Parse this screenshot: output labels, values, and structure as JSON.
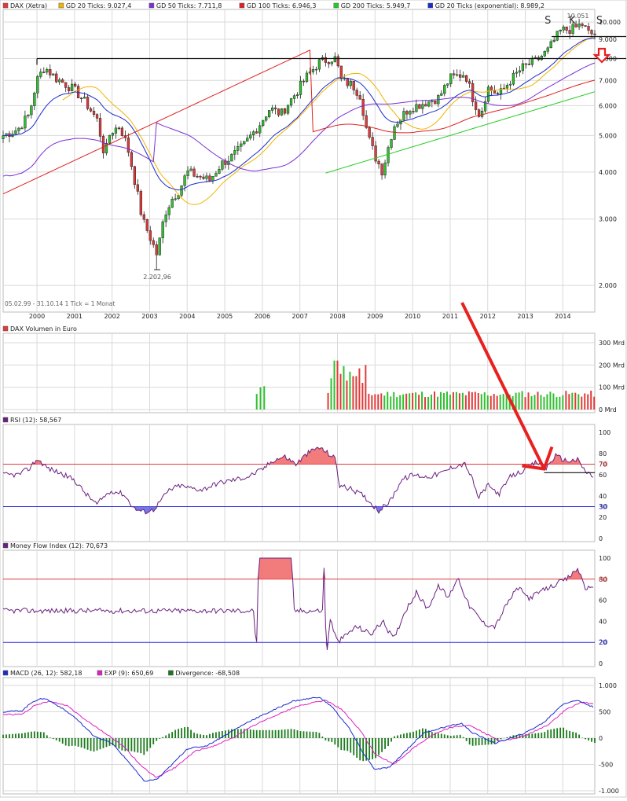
{
  "colors": {
    "up": "#2fbf2f",
    "down": "#e03a3a",
    "gd20": "#f0b400",
    "gd50": "#7a2ed6",
    "gd100": "#e02020",
    "gd200": "#22cc22",
    "ema20": "#1c2ccc",
    "rsi": "#6a2080",
    "mfi": "#6a2080",
    "macd": "#1c2ccc",
    "signal": "#e020c0",
    "divergence": "#1a7a1a",
    "upperband": "#e03a3a",
    "lowerband": "#2a2adc",
    "grid": "#d9d9d9",
    "annotation": "#e82020"
  },
  "panels": {
    "price": {
      "legend": [
        {
          "label": "DAX (Xetra)",
          "color": "#e03a3a"
        },
        {
          "label": "GD 20 Ticks: 9.027,4",
          "color": "#f0b400"
        },
        {
          "label": "GD 50 Ticks: 7.711,8",
          "color": "#7a2ed6"
        },
        {
          "label": "GD 100 Ticks: 6.946,3",
          "color": "#e02020"
        },
        {
          "label": "GD 200 Ticks: 5.949,7",
          "color": "#22cc22"
        },
        {
          "label": "GD 20 Ticks (exponential): 8.989,2",
          "color": "#1c2ccc"
        }
      ],
      "footer": "05.02.99 - 31.10.14    1 Tick = 1 Monat",
      "low_label": "2.202,96",
      "high_label": "10.051",
      "pattern_labels": [
        "S",
        "K",
        "S"
      ]
    },
    "volume": {
      "legend": [
        {
          "label": "DAX Volumen in Euro",
          "color": "#e03a3a"
        }
      ]
    },
    "rsi": {
      "legend": [
        {
          "label": "RSI (12): 58,567",
          "color": "#6a2080"
        }
      ]
    },
    "mfi": {
      "legend": [
        {
          "label": "Money Flow Index (12): 70,673",
          "color": "#6a2080"
        }
      ]
    },
    "macd": {
      "legend": [
        {
          "label": "MACD (26, 12): 582,18",
          "color": "#1c2ccc"
        },
        {
          "label": "EXP (9): 650,69",
          "color": "#e020c0"
        },
        {
          "label": "Divergence: -68,508",
          "color": "#1a7a1a"
        }
      ]
    }
  },
  "chart_data": [
    {
      "type": "candlestick",
      "title": "DAX (Xetra)",
      "scale": "log",
      "x_ticks": [
        "2000",
        "2001",
        "2002",
        "2003",
        "2004",
        "2005",
        "2006",
        "2007",
        "2008",
        "2009",
        "2010",
        "2011",
        "2012",
        "2013",
        "2014"
      ],
      "y_ticks": [
        "2.000",
        "3.000",
        "4.000",
        "5.000",
        "6.000",
        "7.000",
        "8.000",
        "9.000",
        "10.000"
      ],
      "y_tick_values": [
        2000,
        3000,
        4000,
        5000,
        6000,
        7000,
        8000,
        9000,
        10000
      ],
      "ylim": [
        1700,
        10800
      ],
      "time_range": [
        1999.1,
        2014.85
      ],
      "close_path": [
        [
          1999.1,
          5000
        ],
        [
          1999.5,
          5200
        ],
        [
          1999.8,
          5700
        ],
        [
          2000.0,
          7000
        ],
        [
          2000.2,
          7600
        ],
        [
          2000.5,
          7100
        ],
        [
          2000.8,
          6800
        ],
        [
          2001.0,
          6600
        ],
        [
          2001.3,
          6100
        ],
        [
          2001.6,
          5500
        ],
        [
          2001.8,
          4400
        ],
        [
          2001.95,
          5100
        ],
        [
          2002.2,
          5300
        ],
        [
          2002.4,
          4700
        ],
        [
          2002.6,
          3800
        ],
        [
          2002.8,
          3000
        ],
        [
          2003.0,
          2700
        ],
        [
          2003.2,
          2400
        ],
        [
          2003.4,
          3100
        ],
        [
          2003.6,
          3400
        ],
        [
          2003.8,
          3600
        ],
        [
          2004.0,
          4000
        ],
        [
          2004.3,
          3900
        ],
        [
          2004.6,
          3800
        ],
        [
          2004.9,
          4200
        ],
        [
          2005.2,
          4400
        ],
        [
          2005.5,
          4700
        ],
        [
          2005.9,
          5300
        ],
        [
          2006.2,
          5900
        ],
        [
          2006.5,
          5700
        ],
        [
          2006.9,
          6500
        ],
        [
          2007.2,
          7200
        ],
        [
          2007.5,
          7800
        ],
        [
          2007.8,
          8000
        ],
        [
          2007.95,
          8000
        ],
        [
          2008.1,
          7000
        ],
        [
          2008.4,
          6800
        ],
        [
          2008.6,
          6400
        ],
        [
          2008.8,
          5000
        ],
        [
          2009.0,
          4400
        ],
        [
          2009.2,
          4000
        ],
        [
          2009.5,
          5300
        ],
        [
          2009.9,
          5900
        ],
        [
          2010.3,
          6100
        ],
        [
          2010.7,
          6300
        ],
        [
          2011.0,
          7100
        ],
        [
          2011.4,
          7300
        ],
        [
          2011.6,
          6300
        ],
        [
          2011.8,
          5600
        ],
        [
          2012.0,
          6700
        ],
        [
          2012.3,
          6400
        ],
        [
          2012.6,
          7000
        ],
        [
          2012.95,
          7600
        ],
        [
          2013.3,
          7900
        ],
        [
          2013.6,
          8400
        ],
        [
          2013.95,
          9500
        ],
        [
          2014.3,
          9600
        ],
        [
          2014.5,
          9900
        ],
        [
          2014.7,
          9300
        ],
        [
          2014.83,
          9300
        ]
      ],
      "lows": {
        "2003.2": 2202.96
      },
      "series": [
        {
          "name": "GD 20 Ticks",
          "value_last": 9027.4
        },
        {
          "name": "GD 50 Ticks",
          "value_last": 7711.8
        },
        {
          "name": "GD 100 Ticks",
          "value_last": 6946.3
        },
        {
          "name": "GD 200 Ticks",
          "value_last": 5949.7
        },
        {
          "name": "GD 20 Ticks (exponential)",
          "value_last": 8989.2
        }
      ],
      "resistance": 8000,
      "neckline": 9150,
      "annotation": "red down arrow at right edge"
    },
    {
      "type": "bar",
      "title": "DAX Volumen in Euro",
      "y_ticks": [
        "0 Mrd",
        "100 Mrd",
        "200 Mrd",
        "300 Mrd"
      ],
      "y_tick_values": [
        0,
        100,
        200,
        300
      ],
      "ylim": [
        0,
        300
      ],
      "early_bars": [
        [
          2005.85,
          70
        ],
        [
          2005.95,
          100
        ],
        [
          2006.05,
          105
        ]
      ],
      "data_start": 2007.75,
      "spike_months": [
        [
          2007.85,
          140
        ],
        [
          2007.95,
          220
        ],
        [
          2008.05,
          160
        ],
        [
          2008.15,
          195
        ],
        [
          2008.25,
          130
        ],
        [
          2008.35,
          170
        ],
        [
          2008.45,
          150
        ],
        [
          2008.55,
          185
        ],
        [
          2008.65,
          120
        ],
        [
          2008.75,
          200
        ]
      ],
      "typical_range": [
        55,
        85
      ]
    },
    {
      "type": "line",
      "title": "RSI (12)",
      "value_last": 58.567,
      "y_ticks": [
        "0",
        "20",
        "30",
        "40",
        "60",
        "70",
        "80",
        "100"
      ],
      "y_tick_values": [
        0,
        20,
        30,
        40,
        60,
        70,
        80,
        100
      ],
      "ylim": [
        0,
        100
      ],
      "bands": [
        70,
        30
      ],
      "path": [
        [
          1999.1,
          60
        ],
        [
          1999.5,
          60
        ],
        [
          1999.8,
          66
        ],
        [
          2000.0,
          75
        ],
        [
          2000.3,
          66
        ],
        [
          2000.6,
          62
        ],
        [
          2001.0,
          55
        ],
        [
          2001.3,
          42
        ],
        [
          2001.6,
          32
        ],
        [
          2001.8,
          40
        ],
        [
          2002.0,
          45
        ],
        [
          2002.3,
          42
        ],
        [
          2002.6,
          28
        ],
        [
          2002.85,
          25
        ],
        [
          2003.1,
          27
        ],
        [
          2003.5,
          45
        ],
        [
          2003.8,
          50
        ],
        [
          2004.0,
          48
        ],
        [
          2004.4,
          46
        ],
        [
          2004.8,
          52
        ],
        [
          2005.2,
          55
        ],
        [
          2005.6,
          58
        ],
        [
          2006.0,
          65
        ],
        [
          2006.3,
          74
        ],
        [
          2006.6,
          77
        ],
        [
          2006.9,
          70
        ],
        [
          2007.2,
          80
        ],
        [
          2007.5,
          86
        ],
        [
          2007.8,
          79
        ],
        [
          2007.95,
          75
        ],
        [
          2008.05,
          50
        ],
        [
          2008.4,
          46
        ],
        [
          2008.7,
          40
        ],
        [
          2008.9,
          33
        ],
        [
          2009.1,
          26
        ],
        [
          2009.4,
          35
        ],
        [
          2009.7,
          55
        ],
        [
          2010.0,
          60
        ],
        [
          2010.4,
          58
        ],
        [
          2010.8,
          62
        ],
        [
          2011.1,
          68
        ],
        [
          2011.4,
          70
        ],
        [
          2011.6,
          55
        ],
        [
          2011.75,
          38
        ],
        [
          2012.0,
          50
        ],
        [
          2012.3,
          42
        ],
        [
          2012.6,
          58
        ],
        [
          2012.95,
          64
        ],
        [
          2013.3,
          72
        ],
        [
          2013.55,
          66
        ],
        [
          2013.8,
          78
        ],
        [
          2014.1,
          73
        ],
        [
          2014.4,
          74
        ],
        [
          2014.6,
          63
        ],
        [
          2014.83,
          58
        ]
      ],
      "support_line": 62
    },
    {
      "type": "line",
      "title": "Money Flow Index (12)",
      "value_last": 70.673,
      "y_ticks": [
        "0",
        "20",
        "40",
        "60",
        "80",
        "100"
      ],
      "y_tick_values": [
        0,
        20,
        40,
        60,
        80,
        100
      ],
      "ylim": [
        0,
        100
      ],
      "bands": [
        80,
        20
      ],
      "path": [
        [
          1999.1,
          50
        ],
        [
          2005.8,
          50
        ],
        [
          2005.82,
          2
        ],
        [
          2005.87,
          30
        ],
        [
          2005.9,
          100
        ],
        [
          2006.8,
          100
        ],
        [
          2006.82,
          50
        ],
        [
          2007.6,
          50
        ],
        [
          2007.65,
          100
        ],
        [
          2007.7,
          2
        ],
        [
          2007.8,
          43
        ],
        [
          2008.0,
          20
        ],
        [
          2008.5,
          35
        ],
        [
          2008.9,
          28
        ],
        [
          2009.2,
          40
        ],
        [
          2009.5,
          23
        ],
        [
          2009.8,
          50
        ],
        [
          2010.1,
          67
        ],
        [
          2010.4,
          52
        ],
        [
          2010.7,
          74
        ],
        [
          2010.95,
          62
        ],
        [
          2011.2,
          82
        ],
        [
          2011.5,
          55
        ],
        [
          2011.9,
          38
        ],
        [
          2012.2,
          35
        ],
        [
          2012.5,
          56
        ],
        [
          2012.8,
          72
        ],
        [
          2013.1,
          62
        ],
        [
          2013.4,
          68
        ],
        [
          2013.8,
          75
        ],
        [
          2014.1,
          80
        ],
        [
          2014.4,
          90
        ],
        [
          2014.6,
          72
        ],
        [
          2014.83,
          70
        ]
      ]
    },
    {
      "type": "line",
      "title": "MACD (26, 12)",
      "y_ticks": [
        "-1.000",
        "-500",
        "0",
        "500",
        "1.000"
      ],
      "y_tick_values": [
        -1000,
        -500,
        0,
        500,
        1000
      ],
      "ylim": [
        -1000,
        1000
      ],
      "series": [
        {
          "name": "MACD (26, 12)",
          "value_last": 582.18,
          "path": [
            [
              1999.1,
              500
            ],
            [
              1999.6,
              520
            ],
            [
              1999.9,
              700
            ],
            [
              2000.2,
              760
            ],
            [
              2000.6,
              600
            ],
            [
              2001.0,
              400
            ],
            [
              2001.5,
              50
            ],
            [
              2002.0,
              -100
            ],
            [
              2002.5,
              -500
            ],
            [
              2002.85,
              -820
            ],
            [
              2003.2,
              -780
            ],
            [
              2003.6,
              -500
            ],
            [
              2004.0,
              -200
            ],
            [
              2004.5,
              -150
            ],
            [
              2005.0,
              50
            ],
            [
              2005.6,
              300
            ],
            [
              2006.2,
              500
            ],
            [
              2006.8,
              700
            ],
            [
              2007.5,
              780
            ],
            [
              2007.85,
              600
            ],
            [
              2008.3,
              200
            ],
            [
              2008.7,
              -300
            ],
            [
              2009.0,
              -600
            ],
            [
              2009.4,
              -550
            ],
            [
              2009.8,
              -250
            ],
            [
              2010.3,
              100
            ],
            [
              2010.8,
              200
            ],
            [
              2011.3,
              280
            ],
            [
              2011.6,
              100
            ],
            [
              2011.9,
              0
            ],
            [
              2012.2,
              -100
            ],
            [
              2012.6,
              0
            ],
            [
              2013.0,
              100
            ],
            [
              2013.5,
              300
            ],
            [
              2014.0,
              650
            ],
            [
              2014.4,
              720
            ],
            [
              2014.83,
              582
            ]
          ]
        },
        {
          "name": "EXP (9)",
          "value_last": 650.69,
          "path": [
            [
              1999.1,
              450
            ],
            [
              1999.6,
              450
            ],
            [
              1999.9,
              600
            ],
            [
              2000.3,
              700
            ],
            [
              2000.8,
              620
            ],
            [
              2001.2,
              400
            ],
            [
              2001.8,
              100
            ],
            [
              2002.3,
              -150
            ],
            [
              2002.8,
              -550
            ],
            [
              2003.2,
              -750
            ],
            [
              2003.7,
              -550
            ],
            [
              2004.2,
              -250
            ],
            [
              2004.7,
              -150
            ],
            [
              2005.2,
              0
            ],
            [
              2005.8,
              250
            ],
            [
              2006.4,
              450
            ],
            [
              2007.0,
              620
            ],
            [
              2007.7,
              720
            ],
            [
              2008.1,
              550
            ],
            [
              2008.6,
              150
            ],
            [
              2009.0,
              -300
            ],
            [
              2009.5,
              -500
            ],
            [
              2010.0,
              -200
            ],
            [
              2010.5,
              50
            ],
            [
              2011.0,
              200
            ],
            [
              2011.5,
              250
            ],
            [
              2011.9,
              100
            ],
            [
              2012.3,
              -50
            ],
            [
              2012.7,
              -20
            ],
            [
              2013.1,
              80
            ],
            [
              2013.6,
              250
            ],
            [
              2014.1,
              550
            ],
            [
              2014.5,
              680
            ],
            [
              2014.83,
              651
            ]
          ]
        },
        {
          "name": "Divergence",
          "value_last": -68.508
        }
      ]
    }
  ]
}
